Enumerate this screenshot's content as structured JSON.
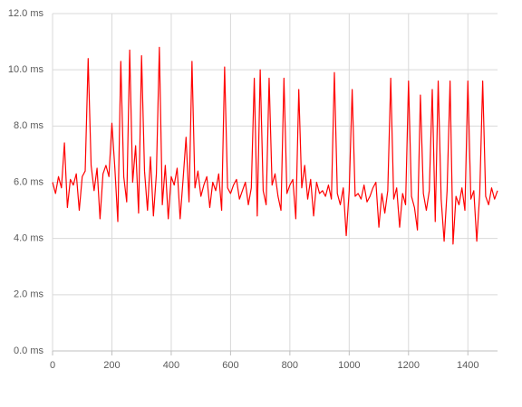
{
  "chart_data": {
    "type": "line",
    "color": "#ff0000",
    "grid": true,
    "xlim": [
      0,
      1500
    ],
    "xticks": [
      0,
      200,
      400,
      600,
      800,
      1000,
      1200,
      1400
    ],
    "ylim": [
      0,
      12
    ],
    "yticks": [
      {
        "value": 0,
        "label": "0.0 ms"
      },
      {
        "value": 2,
        "label": "2.0 ms"
      },
      {
        "value": 4,
        "label": "4.0 ms"
      },
      {
        "value": 6,
        "label": "6.0 ms"
      },
      {
        "value": 8,
        "label": "8.0 ms"
      },
      {
        "value": 10,
        "label": "10.0 ms"
      },
      {
        "value": 12,
        "label": "12.0 ms"
      }
    ],
    "x": [
      0,
      10,
      20,
      30,
      40,
      50,
      60,
      70,
      80,
      90,
      100,
      110,
      120,
      130,
      140,
      150,
      160,
      170,
      180,
      190,
      200,
      210,
      220,
      230,
      240,
      250,
      260,
      270,
      280,
      290,
      300,
      310,
      320,
      330,
      340,
      350,
      360,
      370,
      380,
      390,
      400,
      410,
      420,
      430,
      440,
      450,
      460,
      470,
      480,
      490,
      500,
      510,
      520,
      530,
      540,
      550,
      560,
      570,
      580,
      590,
      600,
      610,
      620,
      630,
      640,
      650,
      660,
      670,
      680,
      690,
      700,
      710,
      720,
      730,
      740,
      750,
      760,
      770,
      780,
      790,
      800,
      810,
      820,
      830,
      840,
      850,
      860,
      870,
      880,
      890,
      900,
      910,
      920,
      930,
      940,
      950,
      960,
      970,
      980,
      990,
      1000,
      1010,
      1020,
      1030,
      1040,
      1050,
      1060,
      1070,
      1080,
      1090,
      1100,
      1110,
      1120,
      1130,
      1140,
      1150,
      1160,
      1170,
      1180,
      1190,
      1200,
      1210,
      1220,
      1230,
      1240,
      1250,
      1260,
      1270,
      1280,
      1290,
      1300,
      1310,
      1320,
      1330,
      1340,
      1350,
      1360,
      1370,
      1380,
      1390,
      1400,
      1410,
      1420,
      1430,
      1440,
      1450,
      1460,
      1470,
      1480,
      1490,
      1500
    ],
    "values": [
      6.0,
      5.6,
      6.2,
      5.8,
      7.4,
      5.1,
      6.1,
      5.9,
      6.3,
      5.0,
      6.2,
      6.4,
      10.4,
      6.6,
      5.7,
      6.5,
      4.7,
      6.3,
      6.6,
      6.2,
      8.1,
      6.5,
      4.6,
      10.3,
      6.2,
      5.3,
      10.7,
      6.0,
      7.3,
      4.9,
      10.5,
      6.4,
      5.0,
      6.9,
      4.8,
      6.3,
      10.8,
      5.2,
      6.6,
      4.7,
      6.2,
      5.9,
      6.5,
      4.7,
      6.1,
      7.6,
      5.3,
      10.3,
      5.8,
      6.4,
      5.5,
      5.9,
      6.2,
      5.1,
      6.0,
      5.7,
      6.3,
      5.0,
      10.1,
      5.8,
      5.6,
      5.9,
      6.1,
      5.4,
      5.7,
      6.0,
      5.2,
      5.8,
      9.7,
      4.8,
      10.0,
      5.7,
      5.2,
      9.7,
      5.9,
      6.3,
      5.5,
      5.0,
      9.7,
      5.6,
      5.9,
      6.1,
      4.7,
      9.3,
      5.8,
      6.6,
      5.4,
      6.1,
      4.8,
      6.0,
      5.6,
      5.7,
      5.5,
      5.9,
      5.4,
      9.9,
      5.6,
      5.2,
      5.8,
      4.1,
      5.7,
      9.3,
      5.5,
      5.6,
      5.4,
      5.9,
      5.3,
      5.5,
      5.8,
      6.0,
      4.4,
      5.6,
      4.9,
      5.7,
      9.7,
      5.4,
      5.8,
      4.4,
      5.6,
      5.2,
      9.6,
      5.5,
      5.1,
      4.3,
      9.1,
      5.6,
      5.0,
      5.7,
      9.3,
      4.6,
      9.6,
      5.4,
      3.9,
      5.7,
      9.6,
      3.8,
      5.5,
      5.2,
      5.8,
      5.0,
      9.6,
      5.4,
      5.7,
      3.9,
      5.6,
      9.6,
      5.5,
      5.2,
      5.8,
      5.4,
      5.7
    ]
  }
}
